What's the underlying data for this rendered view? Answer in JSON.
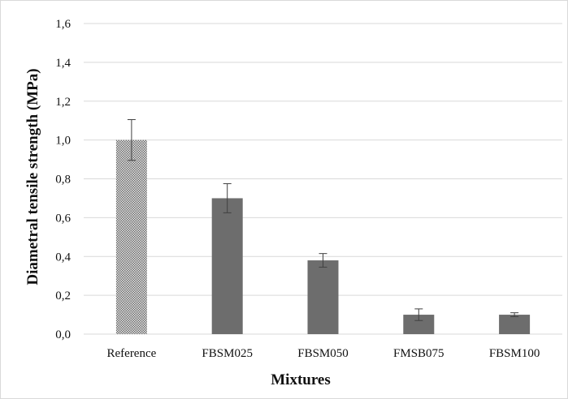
{
  "chart_data": {
    "type": "bar",
    "title": "",
    "xlabel": "Mixtures",
    "ylabel": "Diametral tensile strength (MPa)",
    "categories": [
      "Reference",
      "FBSM025",
      "FBSM050",
      "FMSB075",
      "FBSM100"
    ],
    "values": [
      1.0,
      0.7,
      0.38,
      0.1,
      0.1
    ],
    "error": [
      0.105,
      0.075,
      0.035,
      0.03,
      0.01
    ],
    "ylim": [
      0,
      1.6
    ],
    "yticks": [
      "0,0",
      "0,2",
      "0,4",
      "0,6",
      "0,8",
      "1,0",
      "1,2",
      "1,4",
      "1,6"
    ],
    "grid": true,
    "legend": "none",
    "colors": {
      "bar": "#6d6d6d",
      "reference_pattern_light": "#e6e6e6",
      "reference_pattern_dark": "#6d6d6d",
      "gridline": "#d9d9d9",
      "error_bar": "#404040"
    }
  }
}
